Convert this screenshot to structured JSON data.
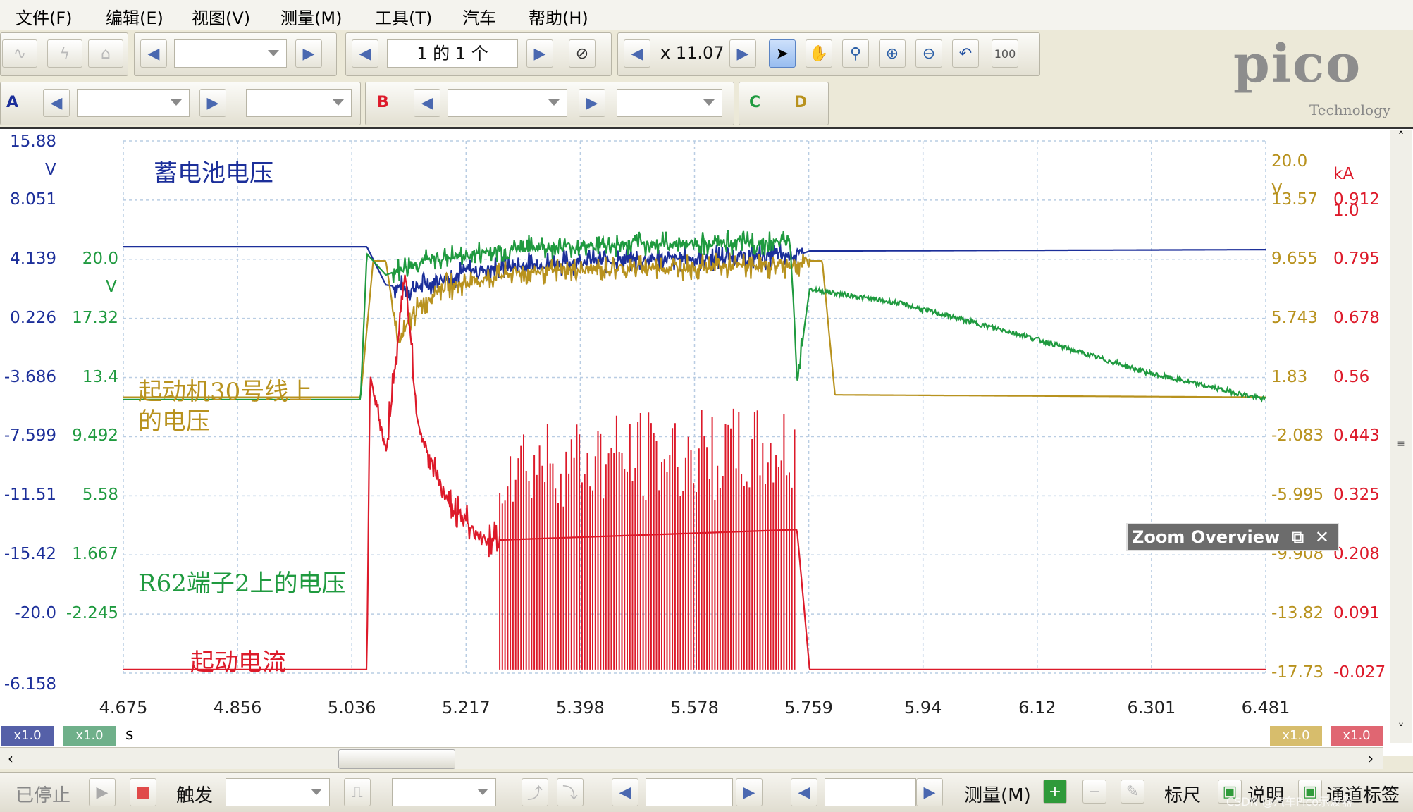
{
  "menu": {
    "items": [
      {
        "label": "文件(F)",
        "name": "menu-file"
      },
      {
        "label": "编辑(E)",
        "name": "menu-edit"
      },
      {
        "label": "视图(V)",
        "name": "menu-view"
      },
      {
        "label": "测量(M)",
        "name": "menu-measure"
      },
      {
        "label": "工具(T)",
        "name": "menu-tools"
      },
      {
        "label": "汽车",
        "name": "menu-auto"
      },
      {
        "label": "帮助(H)",
        "name": "menu-help"
      }
    ]
  },
  "toolbar": {
    "page_indicator": "1 的 1 个",
    "zoom_value": "x 11.07"
  },
  "channels": {
    "a": "A",
    "b": "B",
    "c": "C",
    "d": "D"
  },
  "logo": {
    "word": "pico",
    "sub": "Technology"
  },
  "chart_data": {
    "type": "line",
    "xlabel": "s",
    "x_ticks": [
      "4.675",
      "4.856",
      "5.036",
      "5.217",
      "5.398",
      "5.578",
      "5.759",
      "5.94",
      "6.12",
      "6.301",
      "6.481"
    ],
    "xlim": [
      4.675,
      6.481
    ],
    "left_axis_1": {
      "unit": "V",
      "ticks": [
        "15.88",
        "8.051",
        "4.139",
        "0.226",
        "-3.686",
        "-7.599",
        "-11.51",
        "-15.42",
        "-20.0",
        "-6.158"
      ]
    },
    "left_axis_2": {
      "unit": "V",
      "ticks": [
        "20.0",
        "17.32",
        "13.4",
        "9.492",
        "5.58",
        "1.667",
        "-2.245"
      ]
    },
    "right_axis_1": {
      "unit": "V",
      "ticks": [
        "20.0",
        "13.57",
        "9.655",
        "5.743",
        "1.83",
        "-2.083",
        "-5.995",
        "-9.908",
        "-13.82",
        "-17.73"
      ]
    },
    "right_axis_2": {
      "unit": "kA",
      "ticks": [
        "1.0",
        "0.912",
        "0.795",
        "0.678",
        "0.56",
        "0.443",
        "0.325",
        "0.208",
        "0.091",
        "-0.027"
      ]
    },
    "series": [
      {
        "name": "蓄电池电压",
        "color": "#1c2f9a",
        "x": [
          4.675,
          5.06,
          5.09,
          5.13,
          5.22,
          5.4,
          5.6,
          5.74,
          5.76,
          6.481
        ],
        "y": [
          12.5,
          12.5,
          9.8,
          9.5,
          10.8,
          11.5,
          11.7,
          11.9,
          12.2,
          12.3
        ]
      },
      {
        "name": "起动机30号线上的电压",
        "color": "#b8921e",
        "x": [
          4.675,
          5.05,
          5.07,
          5.09,
          5.11,
          5.13,
          5.17,
          5.3,
          5.5,
          5.73,
          5.76,
          5.78,
          5.8,
          6.481
        ],
        "y": [
          1.83,
          1.83,
          11.5,
          11.5,
          5.5,
          7.5,
          9.5,
          10.7,
          11.0,
          11.2,
          11.5,
          11.5,
          2.0,
          1.83
        ]
      },
      {
        "name": "R62端子2上的电压",
        "color": "#1f9a3f",
        "x": [
          4.675,
          5.05,
          5.06,
          5.09,
          5.15,
          5.3,
          5.5,
          5.73,
          5.74,
          5.76,
          5.9,
          6.1,
          6.3,
          6.481
        ],
        "y": [
          1.667,
          1.667,
          12.0,
          10.5,
          11.5,
          12.4,
          12.7,
          12.8,
          3.0,
          9.5,
          8.5,
          6.2,
          3.5,
          1.667
        ]
      },
      {
        "name": "起动电流",
        "color": "#dd1a2a",
        "x": [
          4.675,
          5.06,
          5.065,
          5.09,
          5.12,
          5.14,
          5.18,
          5.24,
          5.27,
          5.74,
          5.76,
          6.481
        ],
        "y": [
          -0.02,
          -0.02,
          0.55,
          0.4,
          0.75,
          0.45,
          0.32,
          0.23,
          0.23,
          0.25,
          -0.02,
          -0.02
        ]
      }
    ],
    "bursts": [
      [
        5.27,
        5.74
      ]
    ],
    "zoom_overview_label": "Zoom Overview",
    "scale_labels": [
      "x1.0",
      "x1.0",
      "x1.0",
      "x1.0"
    ]
  },
  "status": {
    "stopped": "已停止",
    "trigger": "触发",
    "measure": "测量(M)",
    "ruler": "标尺",
    "notes": "说明",
    "channel_labels": "通道标签",
    "watermark": "CSDN @汽车Pico示波器"
  }
}
